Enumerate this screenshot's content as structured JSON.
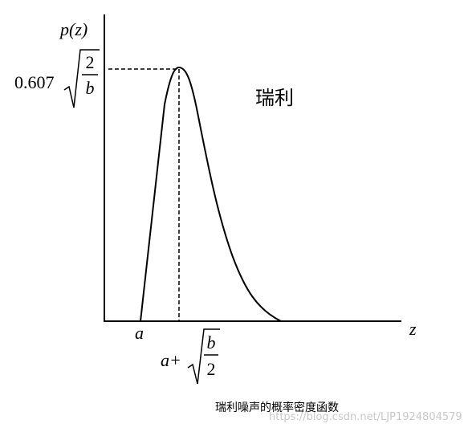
{
  "axes": {
    "y_label": "p(z)",
    "x_label": "z"
  },
  "peak": {
    "coefficient": "0.607",
    "numerator": "2",
    "denominator": "b"
  },
  "curve_label": "瑞利",
  "x_marks": {
    "start": "a",
    "peak_prefix": "a+",
    "numerator": "b",
    "denominator": "2"
  },
  "caption": "瑞利噪声的概率密度函数",
  "watermark": "https://blog.csdn.net/LJP1924804579"
}
